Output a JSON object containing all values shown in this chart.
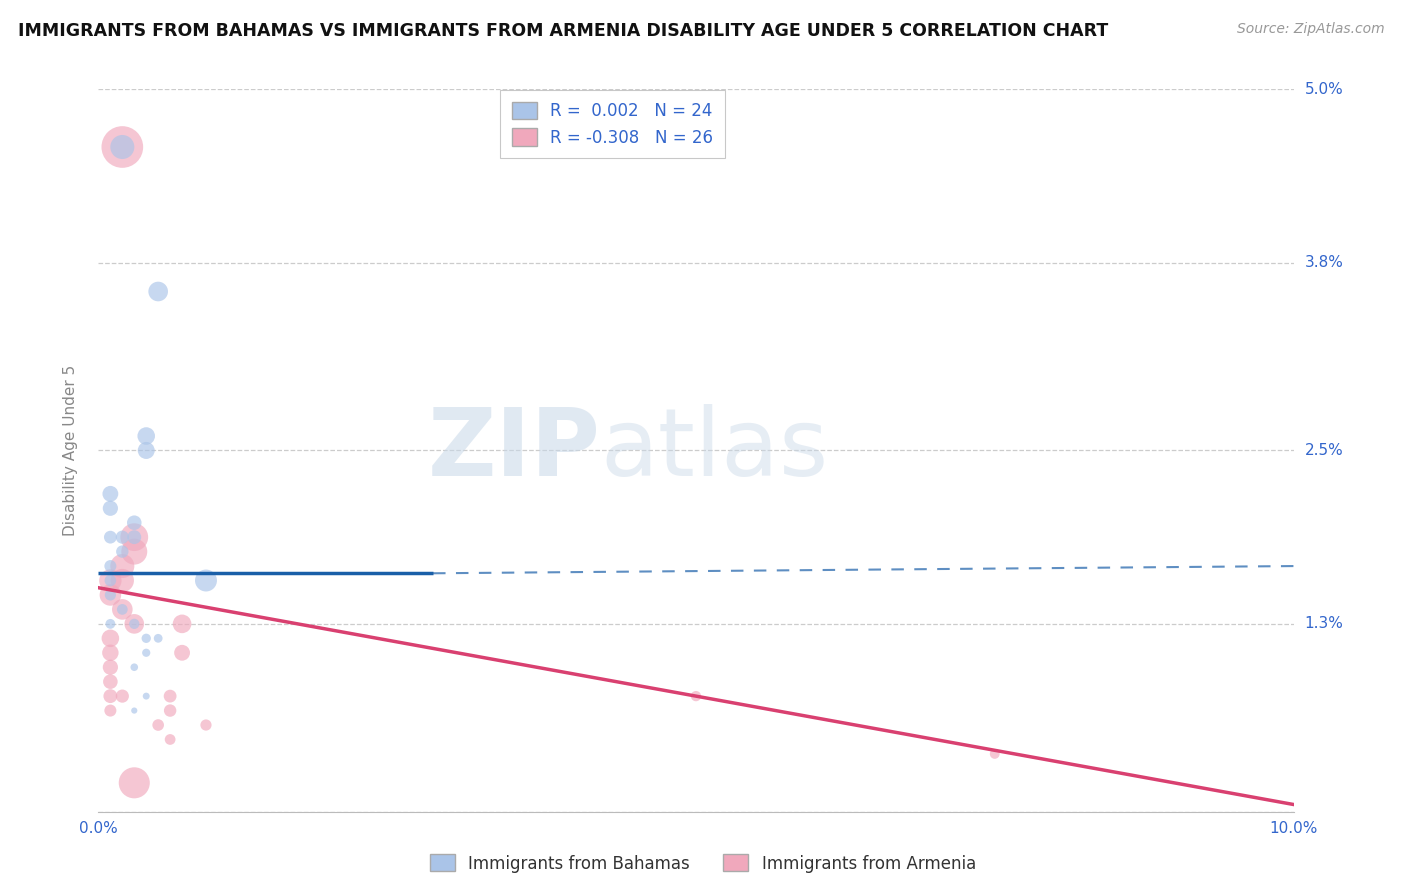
{
  "title": "IMMIGRANTS FROM BAHAMAS VS IMMIGRANTS FROM ARMENIA DISABILITY AGE UNDER 5 CORRELATION CHART",
  "source": "Source: ZipAtlas.com",
  "ylabel": "Disability Age Under 5",
  "xlim": [
    0.0,
    0.1
  ],
  "ylim": [
    0.0,
    0.05
  ],
  "y_ticks": [
    0.0,
    0.013,
    0.025,
    0.038,
    0.05
  ],
  "y_tick_labels": [
    "",
    "1.3%",
    "2.5%",
    "3.8%",
    "5.0%"
  ],
  "color_bahamas": "#aac4e8",
  "color_armenia": "#f0a8bc",
  "line_color_bahamas": "#1a5fa8",
  "line_color_armenia": "#d94070",
  "watermark_zip": "ZIP",
  "watermark_atlas": "atlas",
  "bahamas_points": [
    [
      0.002,
      0.046
    ],
    [
      0.005,
      0.036
    ],
    [
      0.004,
      0.026
    ],
    [
      0.004,
      0.025
    ],
    [
      0.001,
      0.022
    ],
    [
      0.001,
      0.021
    ],
    [
      0.003,
      0.02
    ],
    [
      0.003,
      0.019
    ],
    [
      0.002,
      0.019
    ],
    [
      0.001,
      0.019
    ],
    [
      0.002,
      0.018
    ],
    [
      0.001,
      0.017
    ],
    [
      0.009,
      0.016
    ],
    [
      0.001,
      0.016
    ],
    [
      0.001,
      0.015
    ],
    [
      0.002,
      0.014
    ],
    [
      0.003,
      0.013
    ],
    [
      0.001,
      0.013
    ],
    [
      0.004,
      0.012
    ],
    [
      0.005,
      0.012
    ],
    [
      0.004,
      0.011
    ],
    [
      0.003,
      0.01
    ],
    [
      0.004,
      0.008
    ],
    [
      0.003,
      0.007
    ]
  ],
  "armenia_points": [
    [
      0.002,
      0.046
    ],
    [
      0.003,
      0.019
    ],
    [
      0.003,
      0.018
    ],
    [
      0.002,
      0.017
    ],
    [
      0.002,
      0.016
    ],
    [
      0.001,
      0.016
    ],
    [
      0.001,
      0.015
    ],
    [
      0.002,
      0.014
    ],
    [
      0.003,
      0.013
    ],
    [
      0.007,
      0.013
    ],
    [
      0.001,
      0.012
    ],
    [
      0.001,
      0.011
    ],
    [
      0.007,
      0.011
    ],
    [
      0.001,
      0.01
    ],
    [
      0.001,
      0.009
    ],
    [
      0.001,
      0.008
    ],
    [
      0.002,
      0.008
    ],
    [
      0.006,
      0.008
    ],
    [
      0.006,
      0.007
    ],
    [
      0.001,
      0.007
    ],
    [
      0.005,
      0.006
    ],
    [
      0.009,
      0.006
    ],
    [
      0.006,
      0.005
    ],
    [
      0.05,
      0.008
    ],
    [
      0.075,
      0.004
    ],
    [
      0.003,
      0.002
    ]
  ],
  "bahamas_sizes": [
    300,
    200,
    160,
    150,
    130,
    120,
    110,
    100,
    90,
    85,
    80,
    75,
    250,
    70,
    65,
    60,
    55,
    50,
    45,
    40,
    35,
    30,
    25,
    20
  ],
  "armenia_sizes": [
    900,
    400,
    350,
    300,
    280,
    260,
    240,
    220,
    200,
    180,
    160,
    140,
    130,
    120,
    110,
    100,
    90,
    85,
    80,
    75,
    70,
    65,
    60,
    55,
    50,
    500
  ],
  "bah_line_x": [
    0.0,
    0.027,
    0.1
  ],
  "bah_line_y": [
    0.0165,
    0.0165,
    0.0175
  ],
  "arm_line_x": [
    0.0,
    0.1
  ],
  "arm_line_y": [
    0.0155,
    0.0005
  ]
}
